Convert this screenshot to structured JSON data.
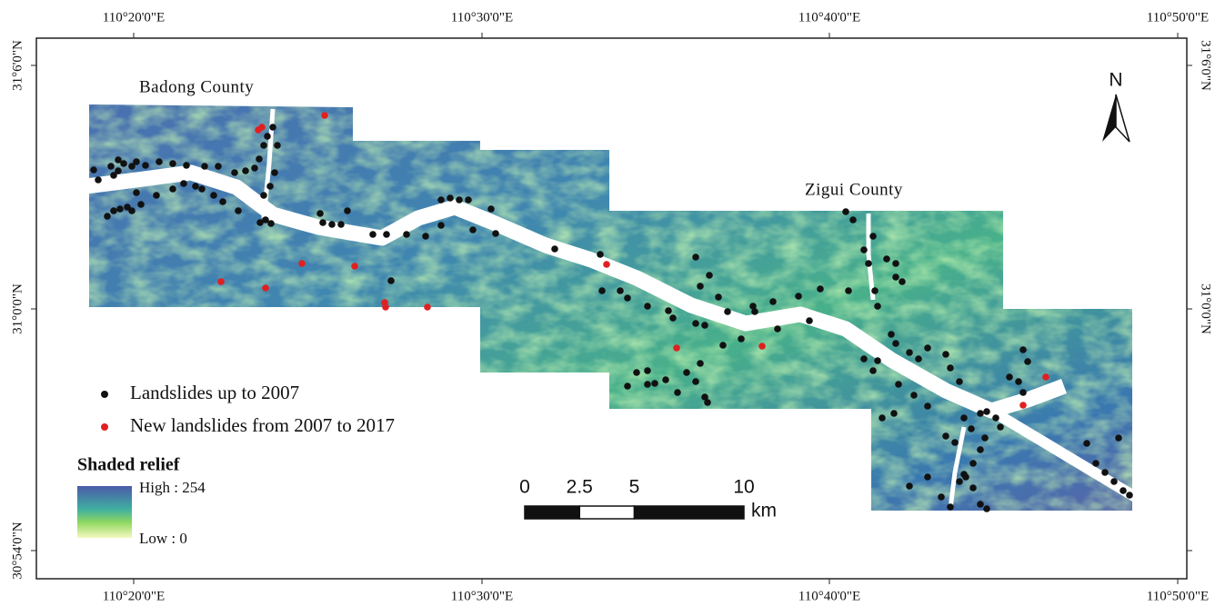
{
  "map": {
    "lon_ticks": [
      "110°20'0\"E",
      "110°30'0\"E",
      "110°40'0\"E",
      "110°50'0\"E"
    ],
    "lat_ticks": [
      "31°6'0\"N",
      "31°0'0\"N",
      "30°54'0\"N"
    ],
    "places": [
      "Badong County",
      "Zigui County"
    ],
    "legend": {
      "items": [
        "Landslides up to 2007",
        "New landslides from 2007 to 2017"
      ],
      "relief_title": "Shaded relief",
      "high": "High : 254",
      "low": "Low : 0"
    },
    "scale_bar": {
      "ticks": [
        0,
        2.5,
        5,
        10
      ],
      "unit": "km"
    },
    "north": "N"
  }
}
